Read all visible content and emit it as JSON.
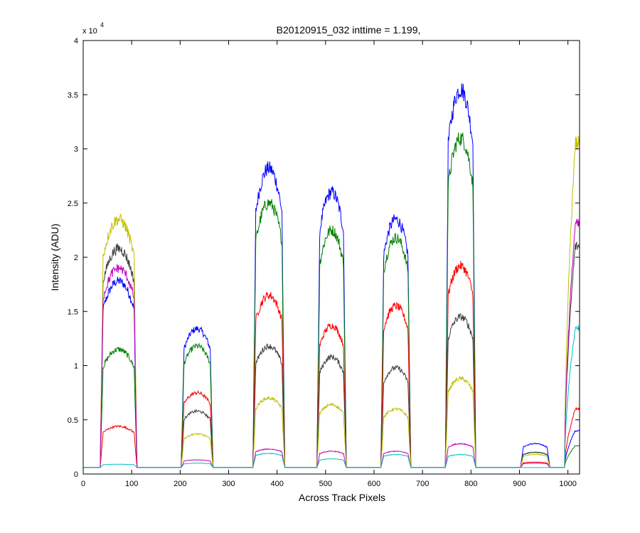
{
  "chart_data": {
    "type": "line",
    "title": "B20120915_032 inttime = 1.199,",
    "xlabel": "Across Track Pixels",
    "ylabel": "Intensity (ADU)",
    "y_exponent_label": "x 10",
    "y_exponent": "4",
    "xlim": [
      0,
      1024
    ],
    "ylim": [
      0,
      40000
    ],
    "xticks": [
      0,
      100,
      200,
      300,
      400,
      500,
      600,
      700,
      800,
      900,
      1000
    ],
    "xtick_labels": [
      "0",
      "100",
      "200",
      "300",
      "400",
      "500",
      "600",
      "700",
      "800",
      "900",
      "1000"
    ],
    "yticks": [
      0,
      5000,
      10000,
      15000,
      20000,
      25000,
      30000,
      35000,
      40000
    ],
    "ytick_labels": [
      "0",
      "0.5",
      "1",
      "1.5",
      "2",
      "2.5",
      "3",
      "3.5",
      "4"
    ],
    "grid": false,
    "baseline": 600,
    "segments": [
      {
        "x_start": 38,
        "x_end": 108
      },
      {
        "x_start": 205,
        "x_end": 265
      },
      {
        "x_start": 353,
        "x_end": 413
      },
      {
        "x_start": 485,
        "x_end": 540
      },
      {
        "x_start": 617,
        "x_end": 673
      },
      {
        "x_start": 750,
        "x_end": 807
      },
      {
        "x_start": 905,
        "x_end": 960
      },
      {
        "x_start": 993,
        "x_end": 1024
      }
    ],
    "series": [
      {
        "color": "#0000ff",
        "peaks": [
          17800,
          13400,
          28200,
          26000,
          23500,
          35500,
          2800,
          4000
        ]
      },
      {
        "color": "#008000",
        "peaks": [
          11500,
          11800,
          25000,
          22500,
          21800,
          31000,
          2000,
          2600
        ]
      },
      {
        "color": "#ff0000",
        "peaks": [
          4400,
          7500,
          16500,
          13700,
          15500,
          19200,
          1100,
          6000
        ]
      },
      {
        "color": "#404040",
        "peaks": [
          20800,
          5800,
          11800,
          10800,
          9800,
          14500,
          2000,
          21000
        ]
      },
      {
        "color": "#c0c000",
        "peaks": [
          23500,
          3700,
          7000,
          6400,
          6000,
          8800,
          1800,
          30500
        ]
      },
      {
        "color": "#c000c0",
        "peaks": [
          19000,
          1300,
          2300,
          2100,
          2100,
          2800,
          1000,
          23000
        ]
      },
      {
        "color": "#00c0c0",
        "peaks": [
          900,
          1000,
          1900,
          1400,
          1800,
          1800,
          600,
          13500
        ]
      }
    ]
  }
}
